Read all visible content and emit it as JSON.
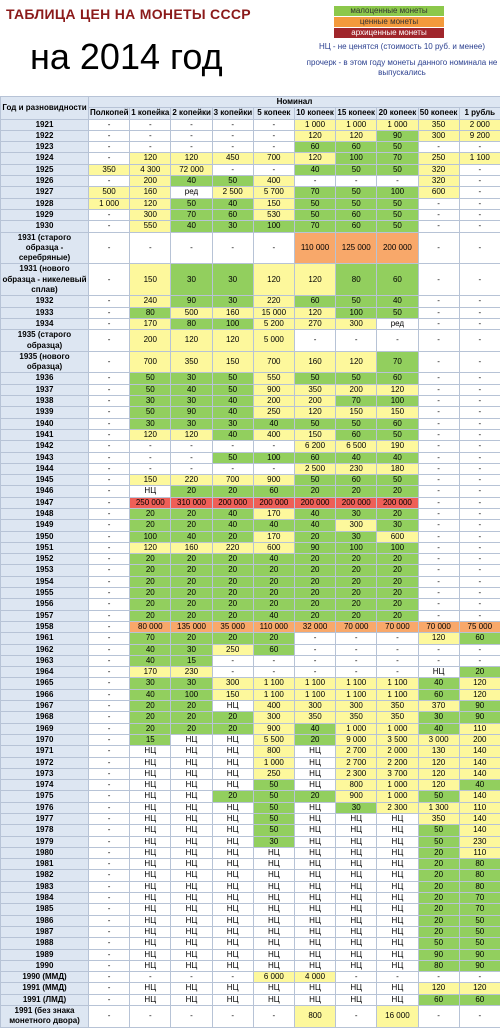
{
  "header": {
    "title": "ТАБЛИЦА ЦЕН НА МОНЕТЫ СССР",
    "subtitle": "на 2014 год"
  },
  "legend": {
    "items": [
      {
        "label": "малоценные монеты",
        "color": "#8cc84b",
        "text_color": "#333"
      },
      {
        "label": "ценные монеты",
        "color": "#f39a3c",
        "text_color": "#333"
      },
      {
        "label": "архиценные монеты",
        "color": "#a0262b",
        "text_color": "#fff"
      }
    ],
    "notes": [
      "НЦ - не ценятся (стоимость 10 руб. и менее)",
      "прочерк - в этом году монеты данного номинала не выпускались"
    ]
  },
  "table": {
    "year_header": "Год и разновидности",
    "group_header": "Номинал",
    "columns": [
      "Полкопейки",
      "1 копейка",
      "2 копейки",
      "3 копейки",
      "5 копеек",
      "10 копеек",
      "15 копеек",
      "20 копеек",
      "50 копеек",
      "1 рубль"
    ],
    "palette": {
      "w": "#ffffff",
      "g": "#92cf5e",
      "y": "#fdf89c",
      "o": "#f8a86a",
      "r": "#ee5f57"
    },
    "rows": [
      [
        "1921",
        "-",
        "-",
        "-",
        "-",
        "-",
        "1 000",
        "1 000",
        "1 000",
        "350",
        "2 000"
      ],
      [
        "1922",
        "-",
        "-",
        "-",
        "-",
        "-",
        "120",
        "120",
        "90",
        "300",
        "9 200"
      ],
      [
        "1923",
        "-",
        "-",
        "-",
        "-",
        "-",
        "60",
        "60",
        "50",
        "-",
        "-"
      ],
      [
        "1924",
        "-",
        "120",
        "120",
        "450",
        "700",
        "120",
        "100",
        "70",
        "250",
        "1 100"
      ],
      [
        "1925",
        "350",
        "4 300",
        "72 000",
        "-",
        "-",
        "40",
        "50",
        "50",
        "320",
        "-"
      ],
      [
        "1926",
        "-",
        "200",
        "40",
        "50",
        "400",
        "-",
        "-",
        "-",
        "320",
        "-"
      ],
      [
        "1927",
        "500",
        "160",
        "ред",
        "2 500",
        "5 700",
        "70",
        "50",
        "100",
        "600",
        "-"
      ],
      [
        "1928",
        "1 000",
        "120",
        "50",
        "40",
        "150",
        "50",
        "50",
        "50",
        "-",
        "-"
      ],
      [
        "1929",
        "-",
        "300",
        "70",
        "60",
        "530",
        "50",
        "60",
        "50",
        "-",
        "-"
      ],
      [
        "1930",
        "-",
        "550",
        "40",
        "30",
        "100",
        "70",
        "60",
        "50",
        "-",
        "-"
      ],
      [
        "1931 (старого образца - серебряные)",
        "-",
        "-",
        "-",
        "-",
        "-",
        "110 000",
        "125 000",
        "200 000",
        "-",
        "-"
      ],
      [
        "1931 (нового образца - никелевый сплав)",
        "-",
        "150",
        "30",
        "30",
        "120",
        "120",
        "80",
        "60",
        "-",
        "-"
      ],
      [
        "1932",
        "-",
        "240",
        "90",
        "30",
        "220",
        "60",
        "50",
        "40",
        "-",
        "-"
      ],
      [
        "1933",
        "-",
        "80",
        "500",
        "160",
        "15 000",
        "120",
        "100",
        "50",
        "-",
        "-"
      ],
      [
        "1934",
        "-",
        "170",
        "80",
        "100",
        "5 200",
        "270",
        "300",
        "ред",
        "-",
        "-"
      ],
      [
        "1935 (старого образца)",
        "-",
        "200",
        "120",
        "120",
        "5 000",
        "-",
        "-",
        "-",
        "-",
        "-"
      ],
      [
        "1935 (нового образца)",
        "-",
        "700",
        "350",
        "150",
        "700",
        "160",
        "120",
        "70",
        "-",
        "-"
      ],
      [
        "1936",
        "-",
        "50",
        "30",
        "50",
        "550",
        "50",
        "50",
        "60",
        "-",
        "-"
      ],
      [
        "1937",
        "-",
        "50",
        "40",
        "50",
        "900",
        "350",
        "200",
        "120",
        "-",
        "-"
      ],
      [
        "1938",
        "-",
        "30",
        "30",
        "40",
        "200",
        "200",
        "70",
        "100",
        "-",
        "-"
      ],
      [
        "1939",
        "-",
        "50",
        "90",
        "40",
        "250",
        "120",
        "150",
        "150",
        "-",
        "-"
      ],
      [
        "1940",
        "-",
        "30",
        "30",
        "30",
        "40",
        "50",
        "50",
        "60",
        "-",
        "-"
      ],
      [
        "1941",
        "-",
        "120",
        "120",
        "40",
        "400",
        "150",
        "60",
        "50",
        "-",
        "-"
      ],
      [
        "1942",
        "-",
        "-",
        "-",
        "-",
        "-",
        "6 200",
        "6 500",
        "190",
        "-",
        "-"
      ],
      [
        "1943",
        "-",
        "-",
        "-",
        "50",
        "100",
        "60",
        "40",
        "40",
        "-",
        "-"
      ],
      [
        "1944",
        "-",
        "-",
        "-",
        "-",
        "-",
        "2 500",
        "230",
        "180",
        "-",
        "-"
      ],
      [
        "1945",
        "-",
        "150",
        "220",
        "700",
        "900",
        "50",
        "60",
        "50",
        "-",
        "-"
      ],
      [
        "1946",
        "-",
        "НЦ",
        "20",
        "20",
        "60",
        "20",
        "20",
        "20",
        "-",
        "-"
      ],
      [
        "1947",
        "-",
        "250 000",
        "310 000",
        "200 000",
        "200 000",
        "200 000",
        "200 000",
        "200 000",
        "-",
        "-"
      ],
      [
        "1948",
        "-",
        "20",
        "20",
        "40",
        "170",
        "40",
        "30",
        "20",
        "-",
        "-"
      ],
      [
        "1949",
        "-",
        "20",
        "20",
        "40",
        "40",
        "40",
        "300",
        "30",
        "-",
        "-"
      ],
      [
        "1950",
        "-",
        "100",
        "40",
        "20",
        "170",
        "20",
        "30",
        "600",
        "-",
        "-"
      ],
      [
        "1951",
        "-",
        "120",
        "160",
        "220",
        "600",
        "90",
        "100",
        "100",
        "-",
        "-"
      ],
      [
        "1952",
        "-",
        "20",
        "20",
        "20",
        "40",
        "20",
        "20",
        "20",
        "-",
        "-"
      ],
      [
        "1953",
        "-",
        "20",
        "20",
        "20",
        "20",
        "20",
        "20",
        "20",
        "-",
        "-"
      ],
      [
        "1954",
        "-",
        "20",
        "20",
        "20",
        "20",
        "20",
        "20",
        "20",
        "-",
        "-"
      ],
      [
        "1955",
        "-",
        "20",
        "20",
        "20",
        "20",
        "20",
        "20",
        "20",
        "-",
        "-"
      ],
      [
        "1956",
        "-",
        "20",
        "20",
        "20",
        "20",
        "20",
        "20",
        "20",
        "-",
        "-"
      ],
      [
        "1957",
        "-",
        "20",
        "20",
        "20",
        "40",
        "20",
        "20",
        "20",
        "-",
        "-"
      ],
      [
        "1958",
        "-",
        "80 000",
        "135 000",
        "35 000",
        "110 000",
        "32 000",
        "70 000",
        "70 000",
        "70 000",
        "75 000"
      ],
      [
        "1961",
        "-",
        "70",
        "20",
        "20",
        "20",
        "-",
        "-",
        "-",
        "120",
        "60"
      ],
      [
        "1962",
        "-",
        "40",
        "30",
        "250",
        "60",
        "-",
        "-",
        "-",
        "-",
        "-"
      ],
      [
        "1963",
        "-",
        "40",
        "15",
        "-",
        "-",
        "-",
        "-",
        "-",
        "-",
        "-"
      ],
      [
        "1964",
        "-",
        "170",
        "230",
        "-",
        "-",
        "-",
        "-",
        "-",
        "НЦ",
        "20"
      ],
      [
        "1965",
        "-",
        "30",
        "30",
        "300",
        "1 100",
        "1 100",
        "1 100",
        "1 100",
        "40",
        "120"
      ],
      [
        "1966",
        "-",
        "40",
        "100",
        "150",
        "1 100",
        "1 100",
        "1 100",
        "1 100",
        "60",
        "120"
      ],
      [
        "1967",
        "-",
        "20",
        "20",
        "НЦ",
        "400",
        "300",
        "300",
        "350",
        "370",
        "90"
      ],
      [
        "1968",
        "-",
        "20",
        "20",
        "20",
        "300",
        "350",
        "350",
        "350",
        "30",
        "90"
      ],
      [
        "1969",
        "-",
        "20",
        "20",
        "20",
        "900",
        "40",
        "1 000",
        "1 000",
        "40",
        "110"
      ],
      [
        "1970",
        "-",
        "15",
        "НЦ",
        "НЦ",
        "5 500",
        "20",
        "9 000",
        "3 500",
        "3 000",
        "200"
      ],
      [
        "1971",
        "-",
        "НЦ",
        "НЦ",
        "НЦ",
        "800",
        "НЦ",
        "2 700",
        "2 000",
        "130",
        "140"
      ],
      [
        "1972",
        "-",
        "НЦ",
        "НЦ",
        "НЦ",
        "1 000",
        "НЦ",
        "2 700",
        "2 200",
        "120",
        "140"
      ],
      [
        "1973",
        "-",
        "НЦ",
        "НЦ",
        "НЦ",
        "250",
        "НЦ",
        "2 300",
        "3 700",
        "120",
        "140"
      ],
      [
        "1974",
        "-",
        "НЦ",
        "НЦ",
        "НЦ",
        "50",
        "НЦ",
        "800",
        "1 000",
        "120",
        "40"
      ],
      [
        "1975",
        "-",
        "НЦ",
        "НЦ",
        "20",
        "50",
        "20",
        "900",
        "1 000",
        "50",
        "140"
      ],
      [
        "1976",
        "-",
        "НЦ",
        "НЦ",
        "НЦ",
        "50",
        "НЦ",
        "30",
        "2 300",
        "1 300",
        "110"
      ],
      [
        "1977",
        "-",
        "НЦ",
        "НЦ",
        "НЦ",
        "50",
        "НЦ",
        "НЦ",
        "НЦ",
        "350",
        "140"
      ],
      [
        "1978",
        "-",
        "НЦ",
        "НЦ",
        "НЦ",
        "50",
        "НЦ",
        "НЦ",
        "НЦ",
        "50",
        "140"
      ],
      [
        "1979",
        "-",
        "НЦ",
        "НЦ",
        "НЦ",
        "30",
        "НЦ",
        "НЦ",
        "НЦ",
        "50",
        "230"
      ],
      [
        "1980",
        "-",
        "НЦ",
        "НЦ",
        "НЦ",
        "НЦ",
        "НЦ",
        "НЦ",
        "НЦ",
        "20",
        "110"
      ],
      [
        "1981",
        "-",
        "НЦ",
        "НЦ",
        "НЦ",
        "НЦ",
        "НЦ",
        "НЦ",
        "НЦ",
        "20",
        "80"
      ],
      [
        "1982",
        "-",
        "НЦ",
        "НЦ",
        "НЦ",
        "НЦ",
        "НЦ",
        "НЦ",
        "НЦ",
        "20",
        "80"
      ],
      [
        "1983",
        "-",
        "НЦ",
        "НЦ",
        "НЦ",
        "НЦ",
        "НЦ",
        "НЦ",
        "НЦ",
        "20",
        "80"
      ],
      [
        "1984",
        "-",
        "НЦ",
        "НЦ",
        "НЦ",
        "НЦ",
        "НЦ",
        "НЦ",
        "НЦ",
        "20",
        "70"
      ],
      [
        "1985",
        "-",
        "НЦ",
        "НЦ",
        "НЦ",
        "НЦ",
        "НЦ",
        "НЦ",
        "НЦ",
        "20",
        "70"
      ],
      [
        "1986",
        "-",
        "НЦ",
        "НЦ",
        "НЦ",
        "НЦ",
        "НЦ",
        "НЦ",
        "НЦ",
        "20",
        "50"
      ],
      [
        "1987",
        "-",
        "НЦ",
        "НЦ",
        "НЦ",
        "НЦ",
        "НЦ",
        "НЦ",
        "НЦ",
        "20",
        "50"
      ],
      [
        "1988",
        "-",
        "НЦ",
        "НЦ",
        "НЦ",
        "НЦ",
        "НЦ",
        "НЦ",
        "НЦ",
        "50",
        "50"
      ],
      [
        "1989",
        "-",
        "НЦ",
        "НЦ",
        "НЦ",
        "НЦ",
        "НЦ",
        "НЦ",
        "НЦ",
        "90",
        "90"
      ],
      [
        "1990",
        "-",
        "НЦ",
        "НЦ",
        "НЦ",
        "НЦ",
        "НЦ",
        "НЦ",
        "НЦ",
        "80",
        "90"
      ],
      [
        "1990 (ММД)",
        "-",
        "-",
        "-",
        "-",
        "6 000",
        "4 000",
        "-",
        "-",
        "-",
        "-"
      ],
      [
        "1991 (ММД)",
        "-",
        "НЦ",
        "НЦ",
        "НЦ",
        "НЦ",
        "НЦ",
        "НЦ",
        "НЦ",
        "120",
        "120"
      ],
      [
        "1991 (ЛМД)",
        "-",
        "НЦ",
        "НЦ",
        "НЦ",
        "НЦ",
        "НЦ",
        "НЦ",
        "НЦ",
        "60",
        "60"
      ],
      [
        "1991 (без знака монетного двора)",
        "-",
        "-",
        "-",
        "-",
        "-",
        "800",
        "-",
        "16 000",
        "-",
        "-"
      ]
    ],
    "colors": [
      "wwwwwyyyyy",
      "wwwwwyygyy",
      "wwwwwgggww",
      "wyyyyyggyy",
      "yyywwgggyw",
      "wyggywwwyw",
      "yywyygggyw",
      "yyggygggww",
      "wyggygggww",
      "wyggggggww",
      "wwwwwoooww",
      "wyggyyggww",
      "wyggygggww",
      "wgyyyyggww",
      "wyggyyywww",
      "wyyyywwwww",
      "wyyyyyygww",
      "wgggygggww",
      "wgggyyyyww",
      "wgggyyggww",
      "wgggyyyyww",
      "wgggggggww",
      "wyygyyggww",
      "wwwwwyyyww",
      "wwwgggggww",
      "wwwwwyyyww",
      "wyyyygggww",
      "wwggggggww",
      "wrrrrrrrww",
      "wgggygggww",
      "wgggggygww",
      "wgggyggyww",
      "wyyyygggww",
      "wgggggggww",
      "wgggggggww",
      "wgggggggww",
      "wgggggggww",
      "wgggggggww",
      "wgggggggww",
      "wooooooooo",
      "wggggwwwyg",
      "wggygwwwww",
      "wggwwwwwww",
      "wyywwwwwwg",
      "wggyyyyygy",
      "wggyyyyygy",
      "wggwyyyyyg",
      "wgggyyyygg",
      "wgggygyygy",
      "wgwwygyyyy",
      "wwwwywyyyy",
      "wwwwywyyyy",
      "wwwwywyyyy",
      "wwwwgwyyyg",
      "wwwgggyygy",
      "wwwwgwgyyy",
      "wwwwgwwwyy",
      "wwwwgwwwgy",
      "wwwwgwwwgy",
      "wwwwwwwwgy",
      "wwwwwwwwgg",
      "wwwwwwwwgg",
      "wwwwwwwwgg",
      "wwwwwwwwgg",
      "wwwwwwwwgg",
      "wwwwwwwwgg",
      "wwwwwwwwgg",
      "wwwwwwwwgg",
      "wwwwwwwwgg",
      "wwwwwwwwgg",
      "wwwwyywwww",
      "wwwwwwwwyy",
      "wwwwwwwwgg",
      "wwwwwywyww"
    ]
  }
}
